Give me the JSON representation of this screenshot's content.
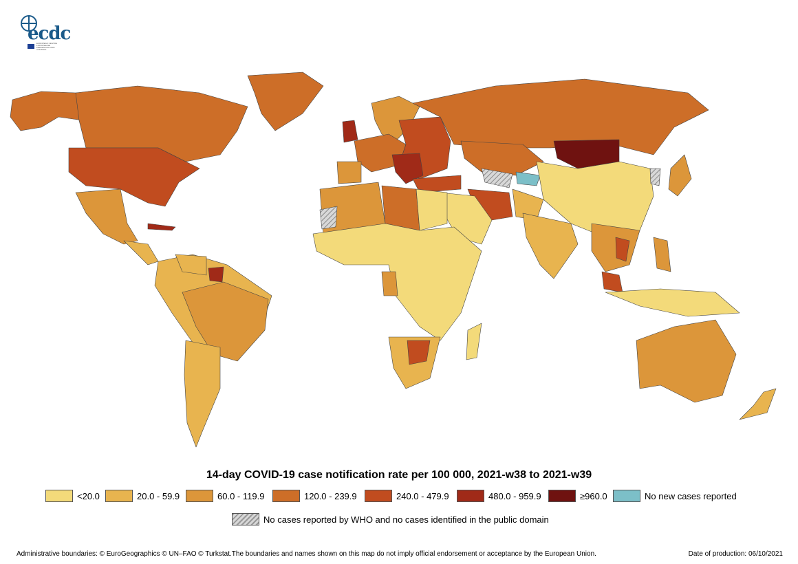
{
  "logo": {
    "text": "ecdc",
    "subtext": "EUROPEAN CENTRE FOR DISEASE PREVENTION AND CONTROL"
  },
  "title": "14-day COVID-19 case notification rate per 100 000, 2021-w38 to 2021-w39",
  "legend": {
    "classes": [
      {
        "label": "<20.0",
        "color": "#f3da7a"
      },
      {
        "label": "20.0 - 59.9",
        "color": "#e8b44f"
      },
      {
        "label": "60.0 - 119.9",
        "color": "#dc963a"
      },
      {
        "label": "120.0 - 239.9",
        "color": "#cd6e28"
      },
      {
        "label": "240.0 - 479.9",
        "color": "#c14c1f"
      },
      {
        "label": "480.0 - 959.9",
        "color": "#a02a18"
      },
      {
        "label": "≥960.0",
        "color": "#6f1210"
      },
      {
        "label": "No new cases reported",
        "color": "#7cbfc8"
      }
    ],
    "hatch_label": "No cases reported by WHO and no cases identified in the public domain"
  },
  "footer": {
    "left": "Administrative boundaries: © EuroGeographics © UN–FAO © Turkstat.The boundaries and names shown on this map do not imply official endorsement or acceptance by the European Union.",
    "right": "Date of production: 06/10/2021"
  }
}
